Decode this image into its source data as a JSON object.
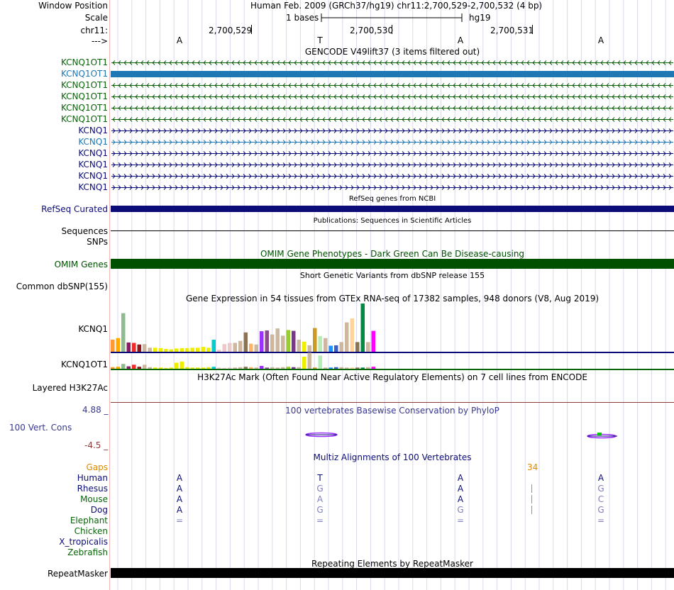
{
  "header": {
    "window_position_label": "Window Position",
    "assembly_text": "Human Feb. 2009 (GRCh37/hg19)   chr11:2,700,529-2,700,532 (4 bp)",
    "scale_label": "Scale",
    "scale_text": "1 bases",
    "scale_db": "hg19",
    "chrom_label": "chr11:",
    "coords": [
      "2,700,529",
      "2,700,530",
      "2,700,531"
    ],
    "strand_label": "--->",
    "bases": [
      "A",
      "T",
      "A",
      "A"
    ]
  },
  "gencode": {
    "title": "GENCODE V49lift37 (3 items filtered out)",
    "items": [
      {
        "name": "KCNQ1OT1",
        "color": "#0a640a",
        "strand": "-",
        "style": "line"
      },
      {
        "name": "KCNQ1OT1",
        "color": "#1f77b4",
        "strand": "-",
        "style": "block"
      },
      {
        "name": "KCNQ1OT1",
        "color": "#0a640a",
        "strand": "-",
        "style": "line"
      },
      {
        "name": "KCNQ1OT1",
        "color": "#0a640a",
        "strand": "-",
        "style": "line"
      },
      {
        "name": "KCNQ1OT1",
        "color": "#0a640a",
        "strand": "-",
        "style": "line"
      },
      {
        "name": "KCNQ1OT1",
        "color": "#0a640a",
        "strand": "-",
        "style": "line"
      },
      {
        "name": "KCNQ1",
        "color": "#0c0c78",
        "strand": "+",
        "style": "line"
      },
      {
        "name": "KCNQ1",
        "color": "#1f77b4",
        "strand": "+",
        "style": "line"
      },
      {
        "name": "KCNQ1",
        "color": "#0c0c78",
        "strand": "+",
        "style": "line"
      },
      {
        "name": "KCNQ1",
        "color": "#0c0c78",
        "strand": "+",
        "style": "line"
      },
      {
        "name": "KCNQ1",
        "color": "#0c0c78",
        "strand": "+",
        "style": "line"
      },
      {
        "name": "KCNQ1",
        "color": "#0c0c78",
        "strand": "+",
        "style": "line"
      }
    ]
  },
  "refseq": {
    "title": "RefSeq genes from NCBI",
    "label": "RefSeq Curated",
    "color": "#0c0c78"
  },
  "publications": {
    "title": "Publications: Sequences in Scientific Articles",
    "label": "Sequences"
  },
  "snps": {
    "label": "SNPs"
  },
  "omim": {
    "title": "OMIM Gene Phenotypes - Dark Green Can Be Disease-causing",
    "label": "OMIM Genes",
    "color": "#005000"
  },
  "dbsnp": {
    "title": "Short Genetic Variants from dbSNP release 155",
    "label": "Common dbSNP(155)"
  },
  "gtex": {
    "title": "Gene Expression in 54 tissues from GTEx RNA-seq of 17382 samples, 948 donors (V8, Aug 2019)",
    "genes": [
      "KCNQ1",
      "KCNQ1OT1"
    ],
    "colors": [
      "#ff9933",
      "#ffaa00",
      "#8fbc8f",
      "#8b1c62",
      "#ee2c2c",
      "#8b1a1a",
      "#cdb79e",
      "#cdb79e",
      "#eeee00",
      "#eeee00",
      "#eeee00",
      "#eeee00",
      "#eeee00",
      "#eeee00",
      "#eeee00",
      "#eeee00",
      "#eeee00",
      "#eeee00",
      "#eeee00",
      "#00ced1",
      "#eec9c9",
      "#eec9c9",
      "#eec9c9",
      "#cdb79e",
      "#cdb79e",
      "#8b7355",
      "#ffb366",
      "#cdb79e",
      "#9b30ff",
      "#8b4c8b",
      "#cdb79e",
      "#cdb79e",
      "#cdb79e",
      "#9acd32",
      "#7a378b",
      "#cdb79e",
      "#eeee00",
      "#cdb79e",
      "#cd9b1d",
      "#b4eeb4",
      "#cdb79e",
      "#1e90ff",
      "#3a5fcd",
      "#cdb79e",
      "#cdb79e",
      "#ffd39b",
      "#8b7355",
      "#008b45",
      "#cdb79e",
      "#ff00ff"
    ],
    "kcnq1_values": [
      3.0,
      3.4,
      9.6,
      2.3,
      2.2,
      1.8,
      1.9,
      1.0,
      1.0,
      0.9,
      0.7,
      0.6,
      0.8,
      0.9,
      0.9,
      1.0,
      1.0,
      1.2,
      1.0,
      3.0,
      0.5,
      1.9,
      2.2,
      2.2,
      2.7,
      4.8,
      2.0,
      1.8,
      5.1,
      5.3,
      4.3,
      5.8,
      4.0,
      5.4,
      5.2,
      3.0,
      2.5,
      1.6,
      5.9,
      3.9,
      3.4,
      1.5,
      1.6,
      2.4,
      7.3,
      8.3,
      2.4,
      12.0,
      2.4,
      5.2
    ],
    "kcnq1ot1_values": [
      0.4,
      0.5,
      1.2,
      0.6,
      1.0,
      0.5,
      1.0,
      0.4,
      0.3,
      0.3,
      0.2,
      0.3,
      1.5,
      1.8,
      0.4,
      0.3,
      0.3,
      0.3,
      0.4,
      0.5,
      0.3,
      0.2,
      0.3,
      0.3,
      0.4,
      0.5,
      0.4,
      0.3,
      0.7,
      0.3,
      0.4,
      0.3,
      0.4,
      0.5,
      0.4,
      0.4,
      3.0,
      4.0,
      0.3,
      3.3,
      0.3,
      0.3,
      0.4,
      0.4,
      0.3,
      0.3,
      0.3,
      0.3,
      0.4,
      0.5
    ]
  },
  "h3k27ac": {
    "title": "H3K27Ac Mark (Often Found Near Active Regulatory Elements) on 7 cell lines from ENCODE",
    "label": "Layered H3K27Ac"
  },
  "phylop": {
    "title": "100 vertebrates Basewise Conservation by PhyloP",
    "label": "100 Vert. Cons",
    "max_label": "4.88 _",
    "min_label": "-4.5 _"
  },
  "multiz": {
    "title": "Multiz Alignments of 100 Vertebrates",
    "gaps_label": "Gaps",
    "gap_count": "34",
    "species": [
      {
        "name": "Human",
        "color": "#0c0c78",
        "bases": [
          "A",
          "T",
          "A",
          "A"
        ],
        "match": [
          true,
          true,
          true,
          true
        ],
        "gap_bar": false
      },
      {
        "name": "Rhesus",
        "color": "#0c0c78",
        "bases": [
          "A",
          "G",
          "A",
          "G"
        ],
        "match": [
          true,
          false,
          true,
          false
        ],
        "gap_bar": true
      },
      {
        "name": "Mouse",
        "color": "#0a640a",
        "bases": [
          "A",
          "A",
          "A",
          "C"
        ],
        "match": [
          true,
          false,
          true,
          false
        ],
        "gap_bar": true
      },
      {
        "name": "Dog",
        "color": "#0c0c78",
        "bases": [
          "A",
          "G",
          "G",
          "G"
        ],
        "match": [
          true,
          false,
          false,
          false
        ],
        "gap_bar": true
      },
      {
        "name": "Elephant",
        "color": "#0a640a",
        "bases": [
          "=",
          "=",
          "=",
          "="
        ],
        "match": [
          false,
          false,
          false,
          false
        ],
        "gap_bar": false
      },
      {
        "name": "Chicken",
        "color": "#0a640a",
        "bases": [
          "",
          "",
          "",
          ""
        ],
        "match": [
          false,
          false,
          false,
          false
        ],
        "gap_bar": false
      },
      {
        "name": "X_tropicalis",
        "color": "#0c0c78",
        "bases": [
          "",
          "",
          "",
          ""
        ],
        "match": [
          false,
          false,
          false,
          false
        ],
        "gap_bar": false
      },
      {
        "name": "Zebrafish",
        "color": "#0a640a",
        "bases": [
          "",
          "",
          "",
          ""
        ],
        "match": [
          false,
          false,
          false,
          false
        ],
        "gap_bar": false
      }
    ]
  },
  "repeatmasker": {
    "title": "Repeating Elements by RepeatMasker",
    "label": "RepeatMasker"
  },
  "colors": {
    "navy": "#0c0c78",
    "green": "#0a640a",
    "orange": "#e08a00",
    "brown": "#8b3a3a",
    "phylop": "#383890"
  }
}
